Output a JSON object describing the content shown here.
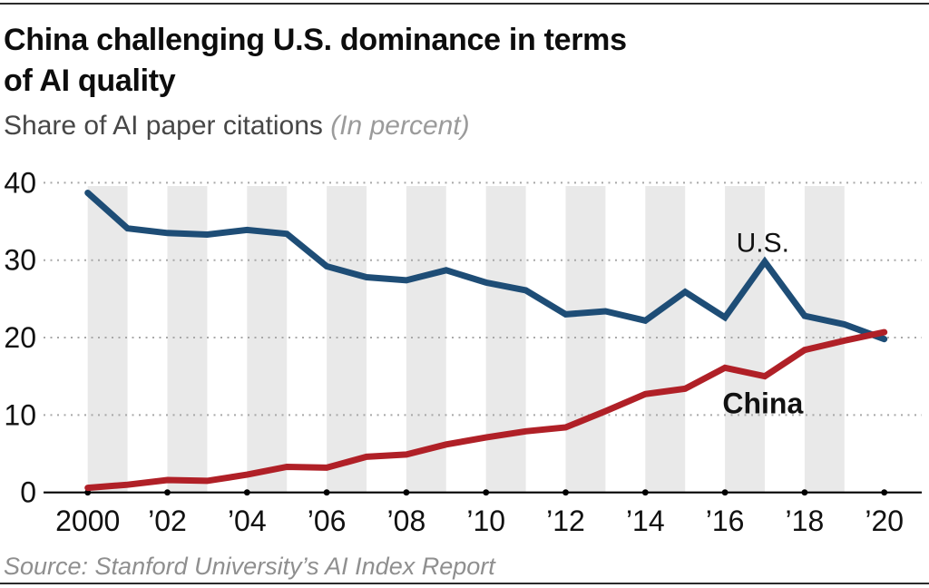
{
  "header": {
    "title_line1": "China challenging U.S. dominance in terms",
    "title_line2": "of AI quality",
    "subtitle": "Share of AI paper citations",
    "subtitle_note": "(In percent)"
  },
  "footer": {
    "source": "Source: Stanford University’s AI Index Report"
  },
  "chart_data": {
    "type": "line",
    "title": "China challenging U.S. dominance in terms of AI quality",
    "subtitle": "Share of AI paper citations (In percent)",
    "xlabel": "",
    "ylabel": "Share of AI paper citations (percent)",
    "x": [
      2000,
      2001,
      2002,
      2003,
      2004,
      2005,
      2006,
      2007,
      2008,
      2009,
      2010,
      2011,
      2012,
      2013,
      2014,
      2015,
      2016,
      2017,
      2018,
      2019,
      2020
    ],
    "series": [
      {
        "name": "U.S.",
        "color": "#1e4d76",
        "label_bold": false,
        "label_anchor": {
          "year": 2016.95,
          "value": 31.1
        },
        "values": [
          38.7,
          34.1,
          33.5,
          33.3,
          33.9,
          33.4,
          29.2,
          27.8,
          27.4,
          28.7,
          27.1,
          26.1,
          23.0,
          23.4,
          22.2,
          25.9,
          22.6,
          29.8,
          22.8,
          21.7,
          19.8
        ]
      },
      {
        "name": "China",
        "color": "#b02027",
        "label_bold": true,
        "label_anchor": {
          "year": 2016.95,
          "value": 10.2
        },
        "values": [
          0.6,
          1.0,
          1.6,
          1.5,
          2.3,
          3.3,
          3.2,
          4.6,
          4.9,
          6.2,
          7.1,
          7.9,
          8.4,
          10.5,
          12.7,
          13.4,
          16.1,
          15.0,
          18.4,
          19.6,
          20.7
        ]
      }
    ],
    "ylim": [
      0,
      40
    ],
    "yticks": [
      0,
      10,
      20,
      30,
      40
    ],
    "xticks": [
      2000,
      2002,
      2004,
      2006,
      2008,
      2010,
      2012,
      2014,
      2016,
      2018,
      2020
    ],
    "xtick_labels": [
      "2000",
      "’02",
      "’04",
      "’06",
      "’08",
      "’10",
      "’12",
      "’14",
      "’16",
      "’18",
      "’20"
    ],
    "grid": "horizontal dotted",
    "grid_color": "#a8a8a8",
    "axis_color": "#000000",
    "tick_label_color": "#111111",
    "band_years": [
      2000,
      2002,
      2004,
      2006,
      2008,
      2010,
      2012,
      2014,
      2016,
      2018
    ],
    "band_color": "#e9e9e9",
    "legend_position": "inline labels near lines",
    "source": "Source: Stanford University’s AI Index Report"
  }
}
